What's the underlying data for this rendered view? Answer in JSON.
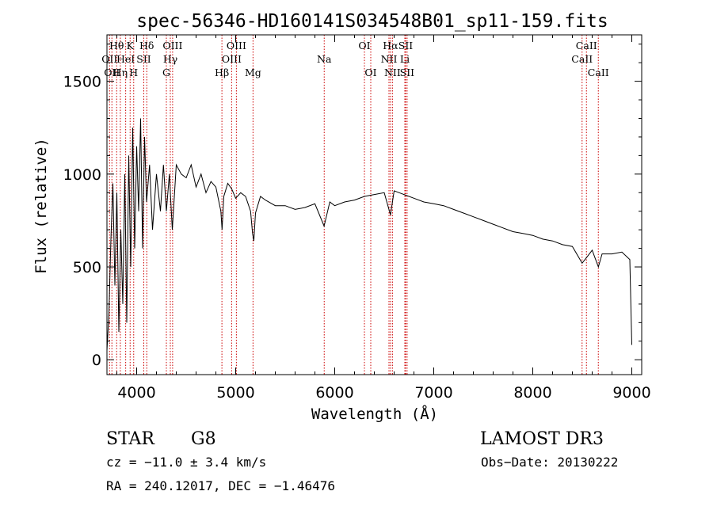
{
  "chart_data": {
    "type": "line",
    "title": "spec-56346-HD160141S034548B01_sp11-159.fits",
    "xlabel": "Wavelength (Å)",
    "ylabel": "Flux (relative)",
    "xlim": [
      3700,
      9100
    ],
    "ylim": [
      -80,
      1750
    ],
    "x_ticks": [
      4000,
      5000,
      6000,
      7000,
      8000,
      9000
    ],
    "y_ticks": [
      0,
      500,
      1000,
      1500
    ],
    "grid": false,
    "series": [
      {
        "color": "#000000",
        "x": [
          3700,
          3720,
          3740,
          3760,
          3780,
          3800,
          3820,
          3840,
          3860,
          3880,
          3900,
          3920,
          3940,
          3960,
          3980,
          4000,
          4020,
          4040,
          4060,
          4080,
          4100,
          4130,
          4160,
          4200,
          4240,
          4270,
          4300,
          4330,
          4360,
          4400,
          4450,
          4500,
          4550,
          4600,
          4650,
          4700,
          4750,
          4800,
          4850,
          4862,
          4880,
          4920,
          4960,
          5000,
          5050,
          5100,
          5150,
          5170,
          5183,
          5200,
          5250,
          5300,
          5400,
          5500,
          5600,
          5700,
          5800,
          5893,
          5950,
          6000,
          6100,
          6200,
          6300,
          6400,
          6500,
          6563,
          6600,
          6650,
          6700,
          6800,
          6900,
          7000,
          7100,
          7200,
          7300,
          7400,
          7500,
          7600,
          7700,
          7800,
          7900,
          8000,
          8100,
          8200,
          8300,
          8400,
          8498,
          8542,
          8600,
          8662,
          8700,
          8800,
          8900,
          8980,
          9000
        ],
        "y": [
          50,
          250,
          650,
          950,
          400,
          900,
          150,
          700,
          300,
          1000,
          200,
          1100,
          500,
          1250,
          600,
          1150,
          800,
          1300,
          600,
          1200,
          850,
          1050,
          700,
          1000,
          800,
          1050,
          800,
          1000,
          700,
          1050,
          1000,
          980,
          1050,
          930,
          1000,
          900,
          960,
          930,
          800,
          700,
          880,
          950,
          920,
          870,
          900,
          880,
          800,
          680,
          640,
          790,
          880,
          860,
          830,
          830,
          810,
          820,
          840,
          720,
          850,
          830,
          850,
          860,
          880,
          890,
          900,
          780,
          910,
          900,
          890,
          870,
          850,
          840,
          830,
          810,
          790,
          770,
          750,
          730,
          710,
          690,
          680,
          670,
          650,
          640,
          620,
          610,
          520,
          550,
          590,
          500,
          570,
          570,
          580,
          540,
          80
        ]
      }
    ],
    "lines": [
      {
        "x": 3726,
        "label": "OII",
        "row": 2
      },
      {
        "x": 3750,
        "label": "OII",
        "row": 3
      },
      {
        "x": 3798,
        "label": "Hθ",
        "row": 1
      },
      {
        "x": 3835,
        "label": "Hη",
        "row": 3
      },
      {
        "x": 3889,
        "label": "HeI",
        "row": 2
      },
      {
        "x": 3934,
        "label": "K",
        "row": 1
      },
      {
        "x": 3970,
        "label": "H",
        "row": 3
      },
      {
        "x": 4072,
        "label": "SII",
        "row": 2
      },
      {
        "x": 4102,
        "label": "Hδ",
        "row": 1
      },
      {
        "x": 4300,
        "label": "G",
        "row": 3
      },
      {
        "x": 4340,
        "label": "Hγ",
        "row": 2
      },
      {
        "x": 4363,
        "label": "OIII",
        "row": 1
      },
      {
        "x": 4861,
        "label": "Hβ",
        "row": 3
      },
      {
        "x": 4959,
        "label": "OIII",
        "row": 2
      },
      {
        "x": 5007,
        "label": "OIII",
        "row": 1
      },
      {
        "x": 5175,
        "label": "Mg",
        "row": 3
      },
      {
        "x": 5894,
        "label": "Na",
        "row": 2
      },
      {
        "x": 6300,
        "label": "OI",
        "row": 1
      },
      {
        "x": 6364,
        "label": "OI",
        "row": 3
      },
      {
        "x": 6548,
        "label": "NII",
        "row": 2
      },
      {
        "x": 6563,
        "label": "Hα",
        "row": 1
      },
      {
        "x": 6583,
        "label": "NII",
        "row": 3
      },
      {
        "x": 6708,
        "label": "Li",
        "row": 2
      },
      {
        "x": 6716,
        "label": "SII",
        "row": 1
      },
      {
        "x": 6731,
        "label": "SII",
        "row": 3
      },
      {
        "x": 8498,
        "label": "CaII",
        "row": 2
      },
      {
        "x": 8542,
        "label": "CaII",
        "row": 1
      },
      {
        "x": 8662,
        "label": "CaII",
        "row": 3
      }
    ],
    "line_color": "#cc0000"
  },
  "info": {
    "class_label": "STAR",
    "subclass": "G8",
    "survey": "LAMOST DR3",
    "cz": "cz = −11.0 ± 3.4 km/s",
    "obs_date": "Obs−Date: 20130222",
    "coords": "RA = 240.12017, DEC =  −1.46476"
  }
}
